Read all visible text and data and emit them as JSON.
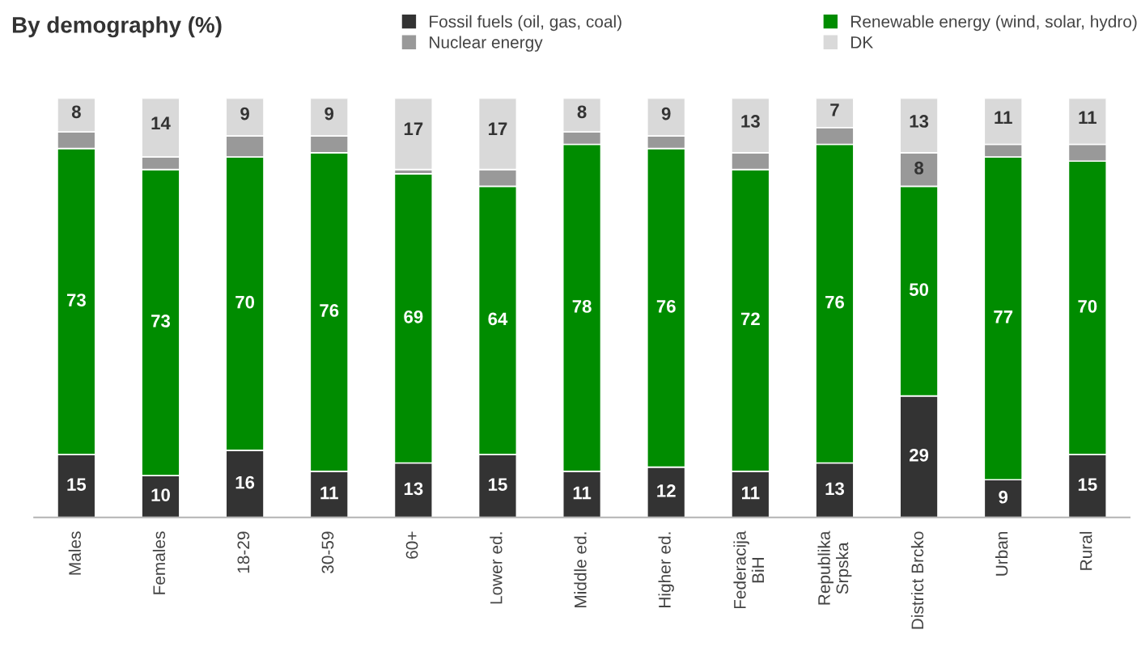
{
  "chart_data": {
    "type": "bar",
    "title": "By demography (%)",
    "stacked": true,
    "legend": "top",
    "data_labels": false,
    "grid": false,
    "categories": [
      "Males",
      "Females",
      "18-29",
      "30-59",
      "60+",
      "Lower ed.",
      "Middle ed.",
      "Higher ed.",
      "Federacija\nBiH",
      "Republika\nSrpska",
      "District Brcko",
      "Urban",
      "Rural"
    ],
    "series": [
      {
        "name": "Fossil fuels (oil, gas, coal)",
        "color": "#333333",
        "values": [
          15,
          10,
          16,
          11,
          13,
          15,
          11,
          12,
          11,
          13,
          29,
          9,
          15
        ],
        "value_labels": [
          "15",
          "10",
          "16",
          "11",
          "13",
          "15",
          "11",
          "12",
          "11",
          "13",
          "29",
          "9",
          "15"
        ]
      },
      {
        "name": "Renewable energy (wind, solar, hydro)",
        "color": "#008c00",
        "values": [
          73,
          73,
          70,
          76,
          69,
          64,
          78,
          76,
          72,
          76,
          50,
          77,
          70
        ],
        "value_labels": [
          "73",
          "73",
          "70",
          "76",
          "69",
          "64",
          "78",
          "76",
          "72",
          "76",
          "50",
          "77",
          "70"
        ]
      },
      {
        "name": "Nuclear energy",
        "color": "#999999",
        "values": [
          4,
          3,
          5,
          4,
          1,
          4,
          3,
          3,
          4,
          4,
          8,
          3,
          4
        ],
        "value_labels": [
          null,
          null,
          null,
          null,
          null,
          null,
          null,
          null,
          null,
          null,
          "8",
          null,
          null
        ]
      },
      {
        "name": "DK",
        "color": "#d9d9d9",
        "values": [
          8,
          14,
          9,
          9,
          17,
          17,
          8,
          9,
          13,
          7,
          13,
          11,
          11
        ],
        "value_labels": [
          "8",
          "14",
          "9",
          "9",
          "17",
          "17",
          "8",
          "9",
          "13",
          "7",
          "13",
          "11",
          "11"
        ]
      }
    ]
  }
}
